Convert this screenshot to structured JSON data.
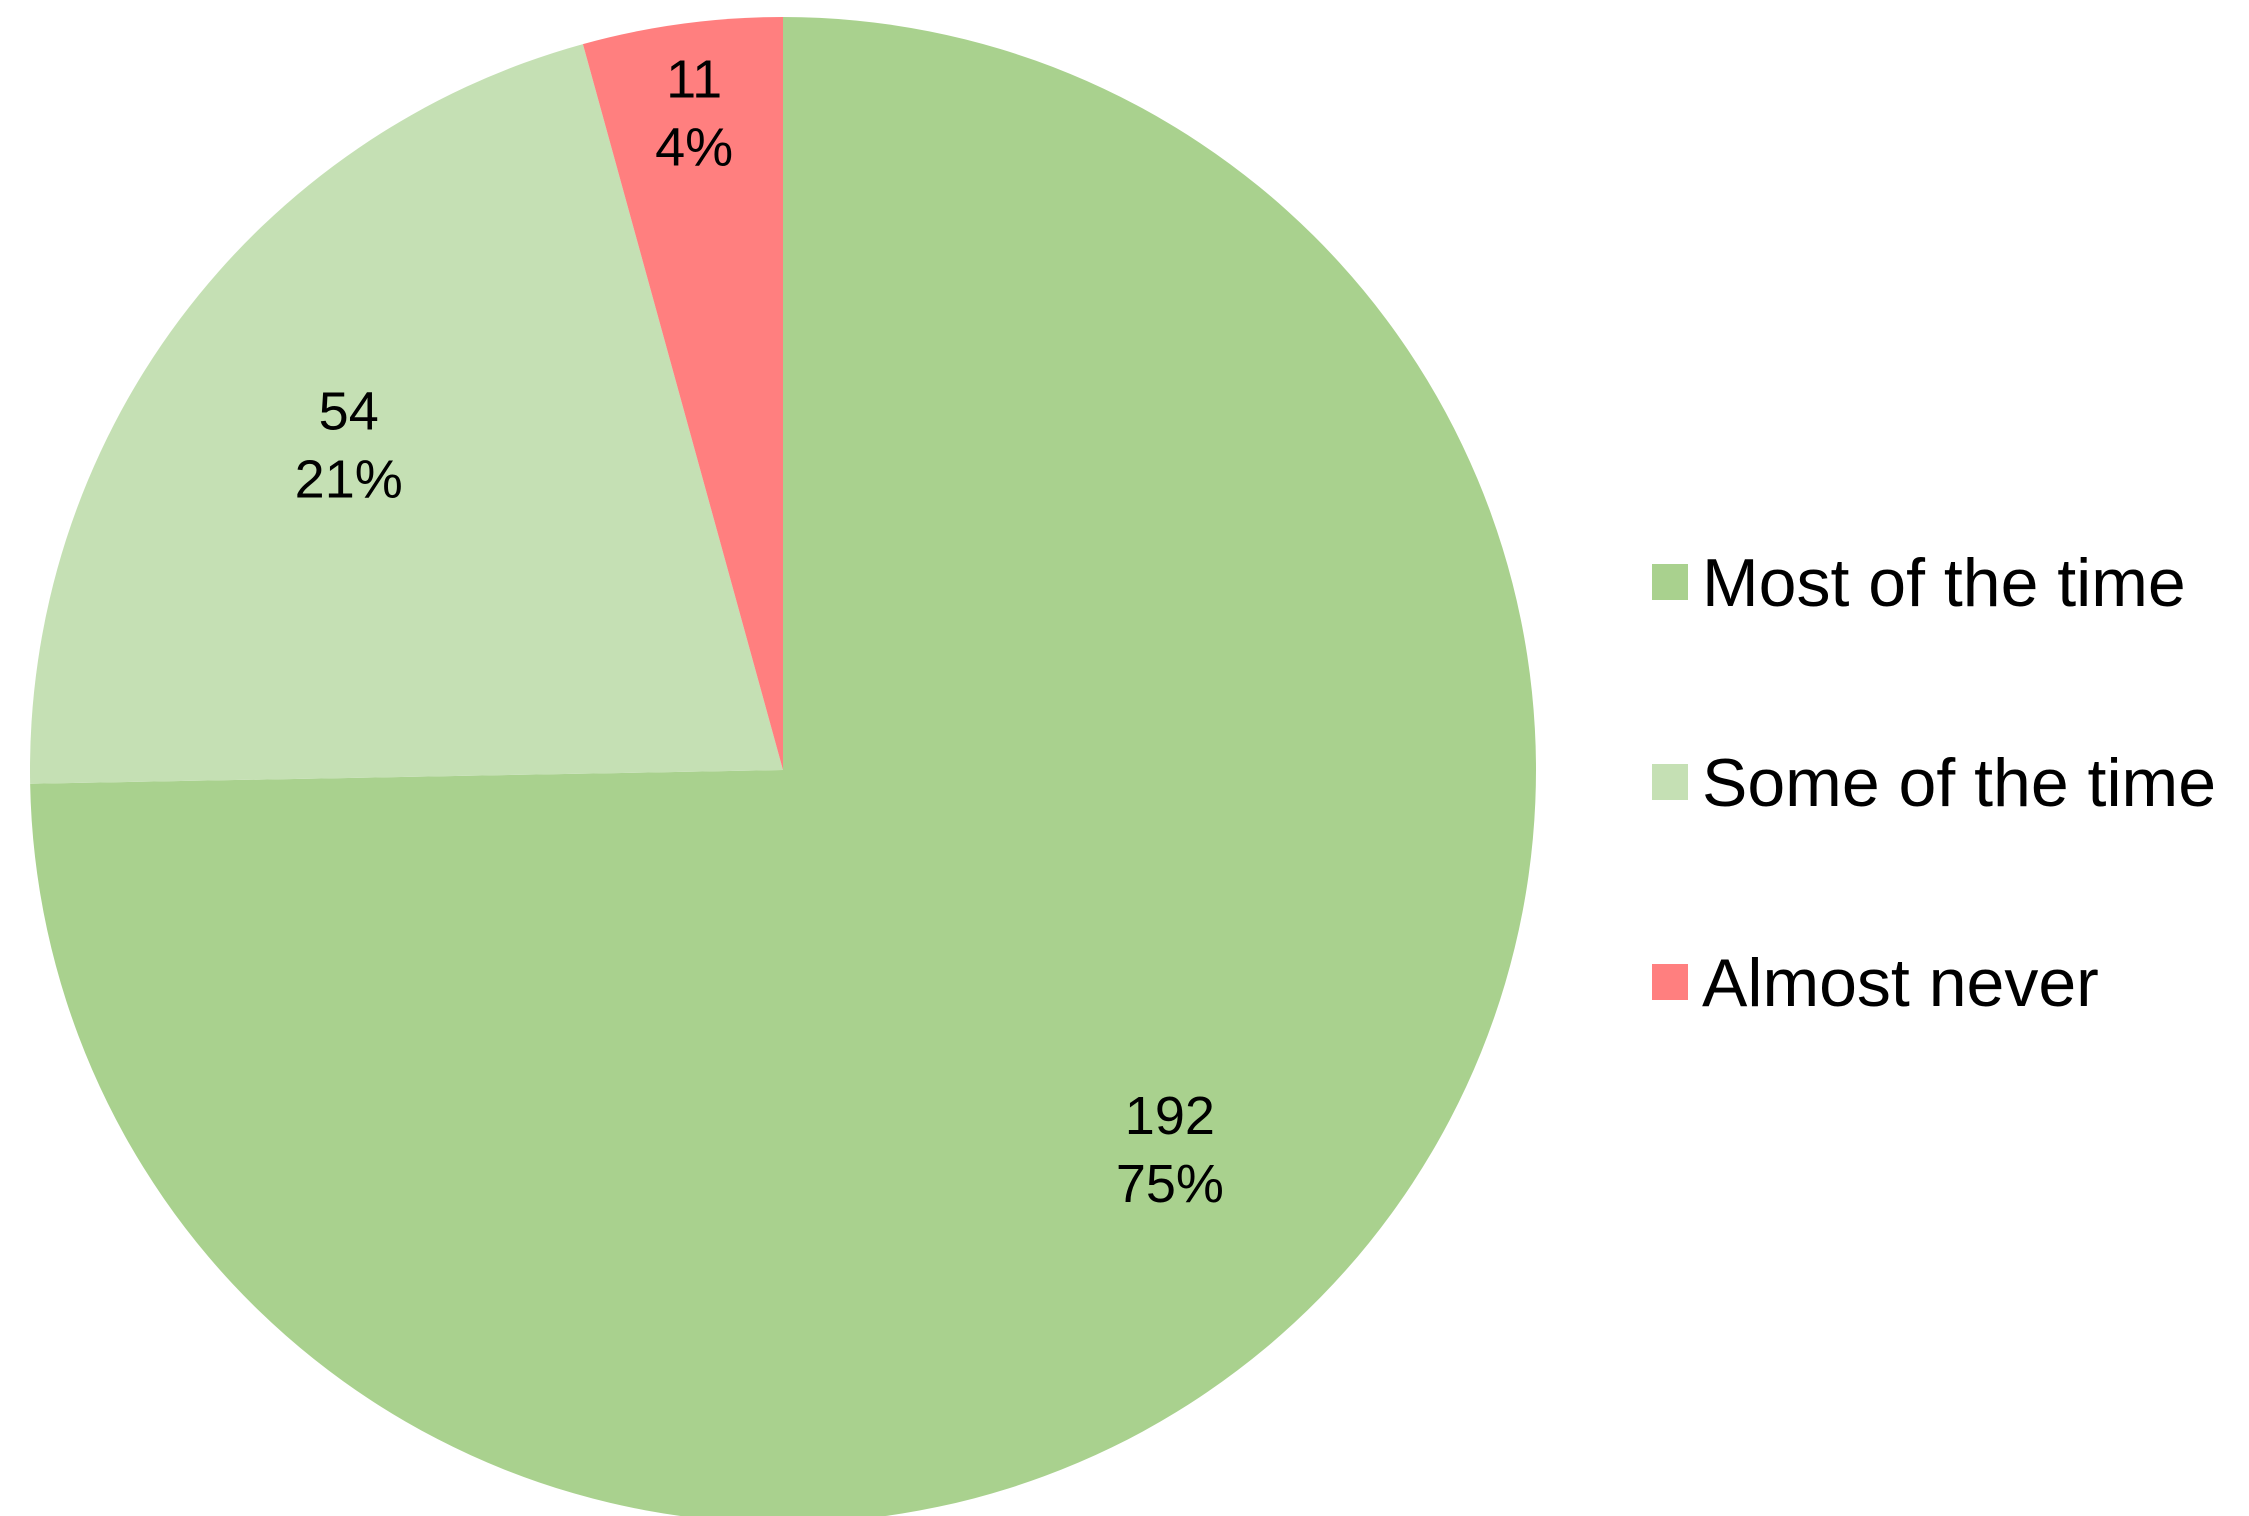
{
  "chart_data": {
    "type": "pie",
    "title": "",
    "start_angle_deg": 0,
    "direction": "clockwise",
    "legend_position": "right",
    "slices": [
      {
        "label": "Most of the time",
        "value": 192,
        "percent": "75%",
        "color": "#a9d18e"
      },
      {
        "label": "Some of the time",
        "value": 54,
        "percent": "21%",
        "color": "#c5e0b4"
      },
      {
        "label": "Almost never",
        "value": 11,
        "percent": "4%",
        "color": "#ff7f7f"
      }
    ]
  }
}
